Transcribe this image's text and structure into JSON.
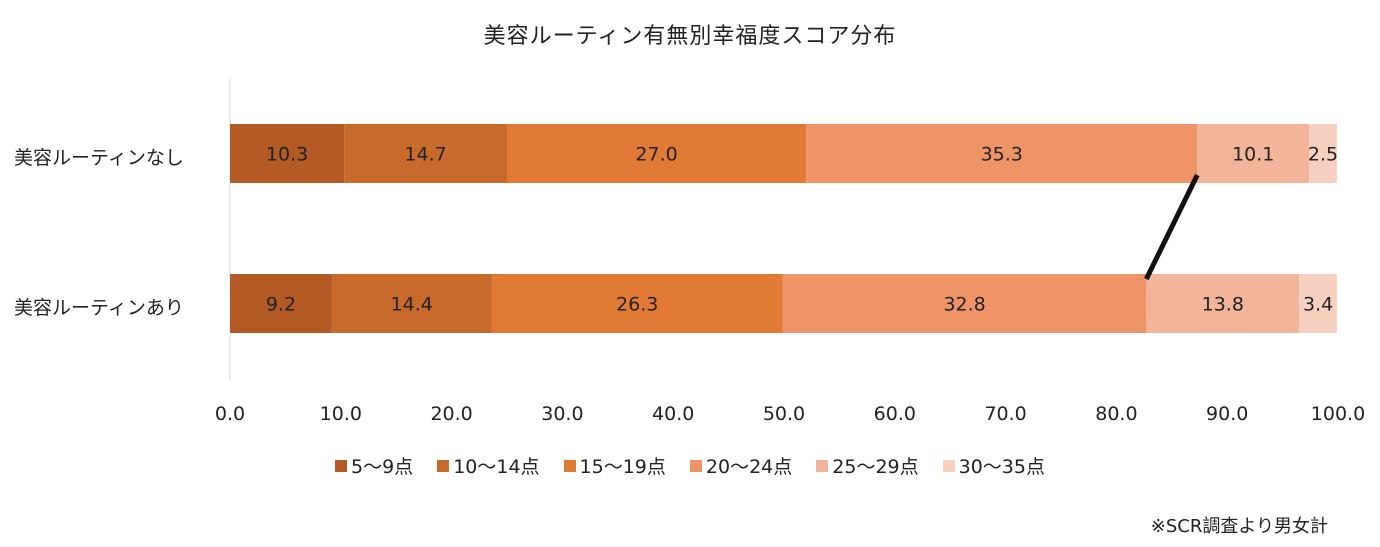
{
  "chart_data": {
    "type": "bar",
    "orientation": "horizontal",
    "stacked": true,
    "title": "美容ルーティン有無別幸福度スコア分布",
    "categories": [
      "美容ルーティンなし",
      "美容ルーティンあり"
    ],
    "series": [
      {
        "name": "5〜9点",
        "color": "#b35a25",
        "values": [
          10.3,
          9.2
        ]
      },
      {
        "name": "10〜14点",
        "color": "#c76a2c",
        "values": [
          14.7,
          14.4
        ]
      },
      {
        "name": "15〜19点",
        "color": "#e07a34",
        "values": [
          27.0,
          26.3
        ]
      },
      {
        "name": "20〜24点",
        "color": "#ee9466",
        "values": [
          35.3,
          32.8
        ]
      },
      {
        "name": "25〜29点",
        "color": "#f2b59a",
        "values": [
          10.1,
          13.8
        ]
      },
      {
        "name": "30〜35点",
        "color": "#f7d0c0",
        "values": [
          2.5,
          3.4
        ]
      }
    ],
    "xlim": [
      0,
      100
    ],
    "xticks": [
      "0.0",
      "10.0",
      "20.0",
      "30.0",
      "40.0",
      "50.0",
      "60.0",
      "70.0",
      "80.0",
      "90.0",
      "100.0"
    ],
    "legend_position": "bottom",
    "grid": false,
    "annotation": "series line connecting the 20〜24点 / 25〜29点 boundary"
  },
  "source_note": "※SCR調査より男女計"
}
